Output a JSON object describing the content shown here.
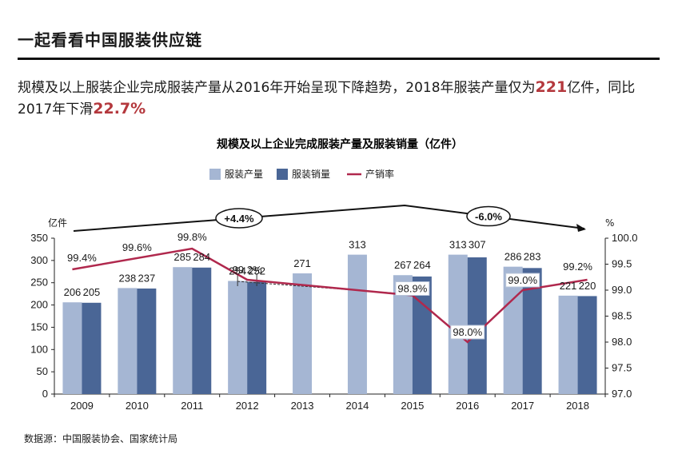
{
  "page": {
    "title": "一起看看中国服装供应链",
    "summary_part1": "规模及以上服装企业完成服装产量从2016年开始呈现下降趋势，2018年服装产量仅为",
    "summary_hl1": "221",
    "summary_part2": "亿件，同比2017年下滑",
    "summary_hl2": "22.7%",
    "source": "数据源：中国服装协会、国家统计局"
  },
  "colors": {
    "production": "#a5b6d3",
    "sales": "#4a6696",
    "rate_line": "#b0284d",
    "highlight": "#b4383d"
  },
  "chart_data": {
    "type": "bar",
    "title": "规模及以上企业完成服装产量及服装销量（亿件）",
    "categories": [
      "2009",
      "2010",
      "2011",
      "2012",
      "2013",
      "2014",
      "2015",
      "2016",
      "2017",
      "2018"
    ],
    "series": [
      {
        "name": "服装产量",
        "values": [
          206,
          238,
          285,
          254,
          271,
          313,
          267,
          313,
          286,
          221
        ]
      },
      {
        "name": "服装销量",
        "values": [
          205,
          237,
          284,
          252,
          null,
          null,
          264,
          307,
          283,
          220
        ]
      }
    ],
    "line_series": {
      "name": "产销率",
      "points": [
        {
          "category": "2009",
          "value": 99.4,
          "label": "99.4%"
        },
        {
          "category": "2011",
          "value": 99.8,
          "label": "99.8%"
        },
        {
          "category": "2012",
          "value": 99.2,
          "label": "99.2%"
        },
        {
          "category": "2015",
          "value": 98.9,
          "label": "98.9%"
        },
        {
          "category": "2016",
          "value": 98.0,
          "label": "98.0%"
        },
        {
          "category": "2017",
          "value": 99.0,
          "label": "99.0%"
        },
        {
          "category": "2018",
          "value": 99.2,
          "label": "99.2%"
        }
      ],
      "extra_labels": [
        {
          "category": "2010",
          "value": 99.6,
          "label": "99.6%"
        }
      ]
    },
    "y_left": {
      "label": "亿件",
      "min": 0,
      "max": 350,
      "ticks": [
        0,
        50,
        100,
        150,
        200,
        250,
        300,
        350
      ]
    },
    "y_right": {
      "label": "%",
      "min": 97.0,
      "max": 100.0,
      "ticks": [
        "97.0",
        "97.5",
        "98.0",
        "98.5",
        "99.0",
        "99.5",
        "100.0"
      ]
    },
    "growth_annotations": [
      {
        "text": "+4.4%",
        "period": "2009-2014"
      },
      {
        "text": "-6.0%",
        "period": "2014-2018"
      }
    ]
  }
}
